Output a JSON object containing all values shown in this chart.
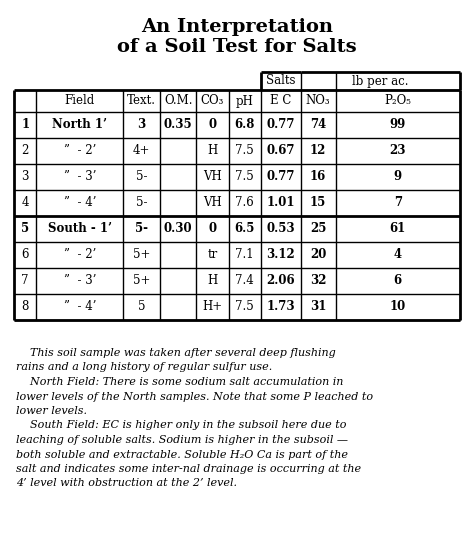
{
  "title_line1": "An Interpretation",
  "title_line2": "of a Soil Test for Salts",
  "col_labels": [
    "Field",
    "Text.",
    "O.M.",
    "CO₃",
    "pH",
    "E C",
    "NO₃",
    "P₂O₅"
  ],
  "super_label_salts": "Salts",
  "super_label_lb": "lb per ac.",
  "rows": [
    [
      "1",
      "North 1’",
      "3",
      "0.35",
      "0",
      "6.8",
      "0.77",
      "74",
      "99"
    ],
    [
      "2",
      "”  - 2’",
      "4+",
      "",
      "H",
      "7.5",
      "0.67",
      "12",
      "23"
    ],
    [
      "3",
      "”  - 3’",
      "5-",
      "",
      "VH",
      "7.5",
      "0.77",
      "16",
      "9"
    ],
    [
      "4",
      "”  - 4’",
      "5-",
      "",
      "VH",
      "7.6",
      "1.01",
      "15",
      "7"
    ],
    [
      "5",
      "South - 1’",
      "5-",
      "0.30",
      "0",
      "6.5",
      "0.53",
      "25",
      "61"
    ],
    [
      "6",
      "”  - 2’",
      "5+",
      "",
      "tr",
      "7.1",
      "3.12",
      "20",
      "4"
    ],
    [
      "7",
      "”  - 3’",
      "5+",
      "",
      "H",
      "7.4",
      "2.06",
      "32",
      "6"
    ],
    [
      "8",
      "”  - 4’",
      "5",
      "",
      "H+",
      "7.5",
      "1.73",
      "31",
      "10"
    ]
  ],
  "bold_rows": [
    0,
    4
  ],
  "bold_cols": [
    6,
    7,
    8
  ],
  "footer_paragraphs": [
    "    This soil sample was taken after several deep flushing rains and a long history of regular sulfur use.",
    "    North Field: There is some sodium salt accumulation in lower levels of the North samples. Note that some P leached to lower levels.",
    "    South Field: EC is higher only in the subsoil here due to leaching of soluble salts. Sodium is higher in the subsoil — both soluble and extractable. Soluble H₂O Ca is part of the salt and indicates some inter-nal drainage is occurring at the 4’ level with obstruction at the 2’ level."
  ],
  "bg_color": "#ffffff",
  "text_color": "#000000"
}
